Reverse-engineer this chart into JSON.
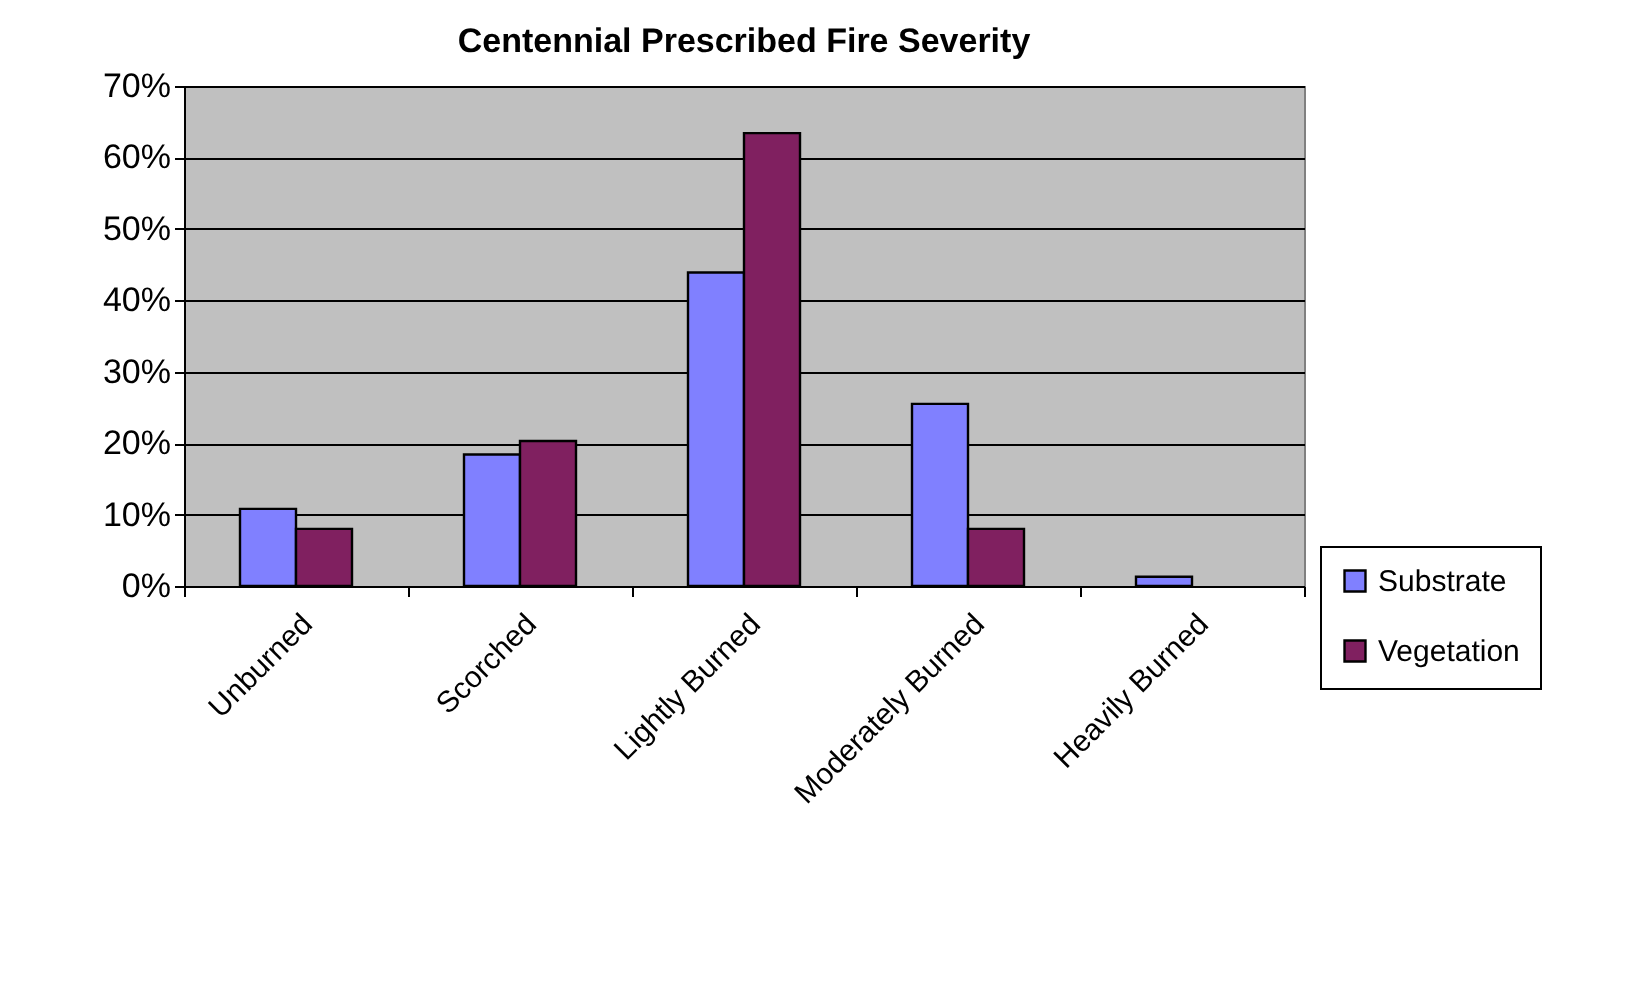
{
  "chart_data": {
    "type": "bar",
    "title": "Centennial Prescribed Fire Severity",
    "categories": [
      "Unburned",
      "Scorched",
      "Lightly Burned",
      "Moderately Burned",
      "Heavily Burned"
    ],
    "series": [
      {
        "name": "Substrate",
        "color": "#8080ff",
        "values": [
          10.8,
          18.4,
          43.9,
          25.5,
          1.3
        ]
      },
      {
        "name": "Vegetation",
        "color": "#802060",
        "values": [
          8.0,
          20.3,
          63.4,
          8.0,
          null
        ]
      }
    ],
    "ylim": [
      0,
      70
    ],
    "yticks": [
      {
        "value": 0,
        "label": "0%"
      },
      {
        "value": 10,
        "label": "10%"
      },
      {
        "value": 20,
        "label": "20%"
      },
      {
        "value": 30,
        "label": "30%"
      },
      {
        "value": 40,
        "label": "40%"
      },
      {
        "value": 50,
        "label": "50%"
      },
      {
        "value": 60,
        "label": "60%"
      },
      {
        "value": 70,
        "label": "70%"
      }
    ],
    "grid": "y",
    "legend": "bottom right"
  }
}
